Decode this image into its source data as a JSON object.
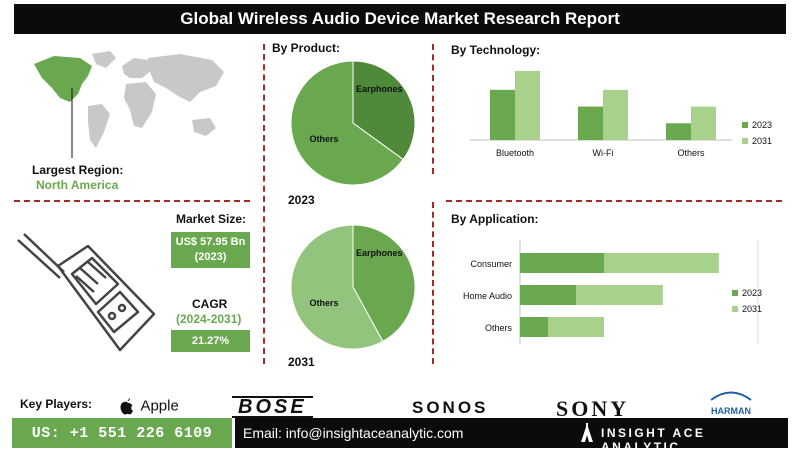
{
  "title": "Global Wireless Audio Device Market Research Report",
  "region": {
    "label": "Largest Region:",
    "value": "North America"
  },
  "market_size": {
    "label": "Market Size:",
    "value_line1": "US$ 57.95 Bn",
    "value_line2": "(2023)"
  },
  "cagr": {
    "label": "CAGR",
    "period": "(2024-2031)",
    "value": "21.27%"
  },
  "product": {
    "heading": "By Product:",
    "year1": "2023",
    "year2": "2031"
  },
  "technology": {
    "heading": "By Technology:"
  },
  "application": {
    "heading": "By Application:"
  },
  "key_players": {
    "label": "Key Players:",
    "logos": [
      "Apple",
      "BOSE",
      "SONOS",
      "SONY",
      "HARMAN"
    ]
  },
  "footer": {
    "phone": "US: +1 551 226 6109",
    "email": "Email: info@insightaceanalytic.com",
    "brand": "INSIGHT ACE ANALYTIC"
  },
  "colors": {
    "dark_green": "#6aa84f",
    "light_green": "#a9d18e",
    "darker_green": "#4e8a3a",
    "pie_2031": "#93c47d",
    "accent_red": "#a52a2a"
  },
  "chart_data": [
    {
      "type": "pie",
      "title": "2023",
      "labels": [
        "Earphones",
        "Others"
      ],
      "values": [
        35,
        65
      ],
      "colors": [
        "#4e8a3a",
        "#6aa84f"
      ]
    },
    {
      "type": "pie",
      "title": "2031",
      "labels": [
        "Earphones",
        "Others"
      ],
      "values": [
        42,
        58
      ],
      "colors": [
        "#6aa84f",
        "#93c47d"
      ]
    },
    {
      "type": "bar",
      "title": "By Technology:",
      "categories": [
        "Bluetooth",
        "Wi-Fi",
        "Others"
      ],
      "series": [
        {
          "name": "2023",
          "values": [
            45,
            30,
            15
          ]
        },
        {
          "name": "2031",
          "values": [
            62,
            45,
            30
          ]
        }
      ],
      "ylim": [
        0,
        70
      ],
      "legend": "right",
      "colors": [
        "#6aa84f",
        "#a9d18e"
      ]
    },
    {
      "type": "bar",
      "orientation": "horizontal",
      "title": "By Application:",
      "categories": [
        "Consumer",
        "Home Audio",
        "Others"
      ],
      "series": [
        {
          "name": "2023",
          "values": [
            60,
            40,
            20
          ]
        },
        {
          "name": "2031",
          "values": [
            82,
            62,
            40
          ]
        }
      ],
      "stacked": true,
      "xlim": [
        0,
        170
      ],
      "legend": "right",
      "colors": [
        "#6aa84f",
        "#a9d18e"
      ]
    }
  ]
}
